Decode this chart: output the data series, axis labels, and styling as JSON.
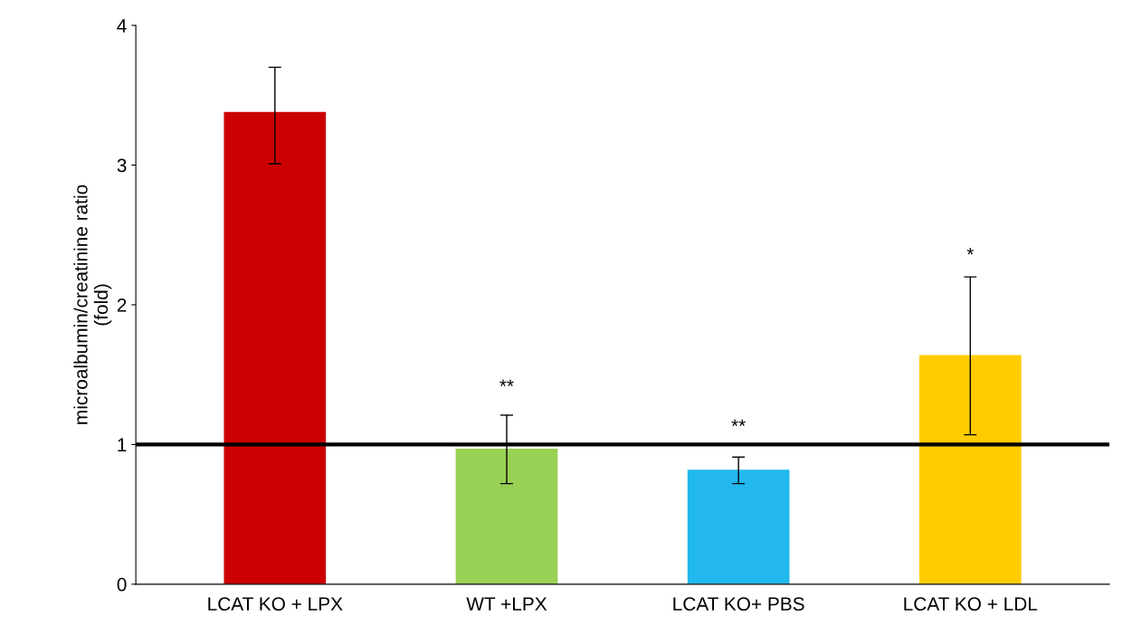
{
  "chart_data": {
    "type": "bar",
    "ylabel": "microalbumin/creatinine ratio\n(fold)",
    "categories": [
      "LCAT KO + LPX",
      "WT +LPX",
      "LCAT KO+ PBS",
      "LCAT KO + LDL"
    ],
    "values": [
      3.38,
      0.97,
      0.82,
      1.64
    ],
    "colors": [
      "#cc0000",
      "#99d155",
      "#22b8ee",
      "#ffcc00"
    ],
    "errors": [
      [
        3.01,
        3.7
      ],
      [
        0.72,
        1.21
      ],
      [
        0.72,
        0.91
      ],
      [
        1.07,
        2.2
      ]
    ],
    "ylim": [
      0,
      4
    ],
    "yticks": [
      0,
      1,
      2,
      3,
      4
    ],
    "grid": false,
    "ref_lines": [
      {
        "axis": "y",
        "value": 1,
        "color": "#000000"
      }
    ],
    "annotations": [
      "**",
      "**",
      "*"
    ]
  }
}
